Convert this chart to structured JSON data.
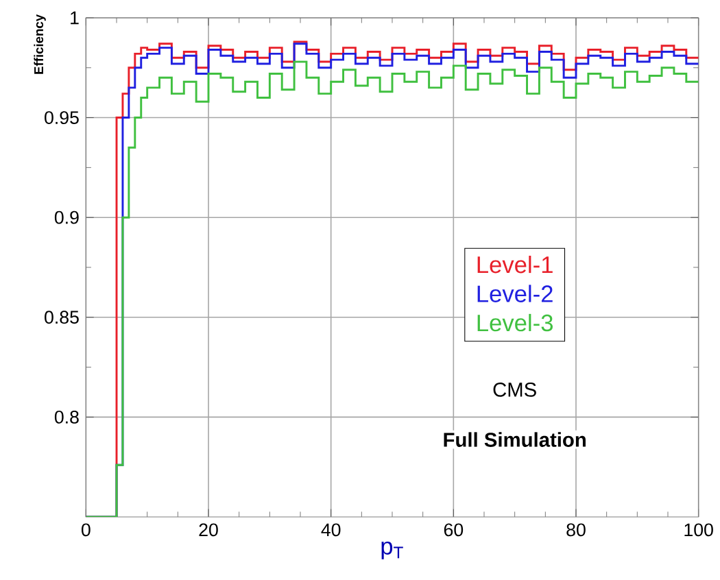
{
  "chart_data": {
    "type": "step",
    "xlabel": "p$_{T}$",
    "ylabel": "Efficiency",
    "x": [
      0,
      5,
      6,
      7,
      8,
      9,
      10,
      12,
      14,
      16,
      18,
      20,
      22,
      24,
      26,
      28,
      30,
      32,
      34,
      36,
      38,
      40,
      42,
      44,
      46,
      48,
      50,
      52,
      54,
      56,
      58,
      60,
      62,
      64,
      66,
      68,
      70,
      72,
      74,
      76,
      78,
      80,
      82,
      84,
      86,
      88,
      90,
      92,
      94,
      96,
      98,
      100
    ],
    "series": [
      {
        "name": "Level-1",
        "color": "#e8202a",
        "values": [
          0.75,
          0.95,
          0.962,
          0.975,
          0.982,
          0.985,
          0.984,
          0.987,
          0.98,
          0.983,
          0.975,
          0.986,
          0.984,
          0.98,
          0.983,
          0.98,
          0.985,
          0.978,
          0.988,
          0.984,
          0.978,
          0.982,
          0.985,
          0.98,
          0.983,
          0.979,
          0.985,
          0.982,
          0.984,
          0.98,
          0.983,
          0.987,
          0.978,
          0.984,
          0.981,
          0.985,
          0.983,
          0.977,
          0.986,
          0.982,
          0.974,
          0.98,
          0.984,
          0.983,
          0.979,
          0.985,
          0.981,
          0.983,
          0.986,
          0.984,
          0.98,
          0.98
        ]
      },
      {
        "name": "Level-2",
        "color": "#2020e0",
        "values": [
          0.75,
          0.776,
          0.95,
          0.965,
          0.975,
          0.98,
          0.982,
          0.985,
          0.977,
          0.981,
          0.972,
          0.984,
          0.981,
          0.978,
          0.98,
          0.977,
          0.982,
          0.975,
          0.987,
          0.982,
          0.975,
          0.979,
          0.982,
          0.977,
          0.98,
          0.976,
          0.982,
          0.979,
          0.981,
          0.977,
          0.98,
          0.984,
          0.975,
          0.981,
          0.978,
          0.982,
          0.98,
          0.973,
          0.983,
          0.979,
          0.97,
          0.977,
          0.981,
          0.98,
          0.976,
          0.982,
          0.978,
          0.98,
          0.983,
          0.981,
          0.977,
          0.977
        ]
      },
      {
        "name": "Level-3",
        "color": "#40c040",
        "values": [
          0.75,
          0.776,
          0.9,
          0.935,
          0.95,
          0.96,
          0.965,
          0.97,
          0.962,
          0.968,
          0.958,
          0.972,
          0.97,
          0.963,
          0.968,
          0.96,
          0.972,
          0.964,
          0.978,
          0.97,
          0.962,
          0.968,
          0.974,
          0.966,
          0.97,
          0.963,
          0.972,
          0.968,
          0.973,
          0.965,
          0.97,
          0.976,
          0.964,
          0.972,
          0.967,
          0.974,
          0.971,
          0.962,
          0.975,
          0.968,
          0.96,
          0.967,
          0.972,
          0.97,
          0.965,
          0.973,
          0.968,
          0.971,
          0.975,
          0.972,
          0.968,
          0.968
        ]
      }
    ],
    "xlim": [
      0,
      100
    ],
    "ylim": [
      0.75,
      1
    ],
    "xticks": [
      0,
      20,
      40,
      60,
      80,
      100
    ],
    "yticks": [
      0.8,
      0.85,
      0.9,
      0.95,
      1
    ],
    "grid": true,
    "legend": "right",
    "annotations": [
      "CMS",
      "Full Simulation"
    ]
  }
}
